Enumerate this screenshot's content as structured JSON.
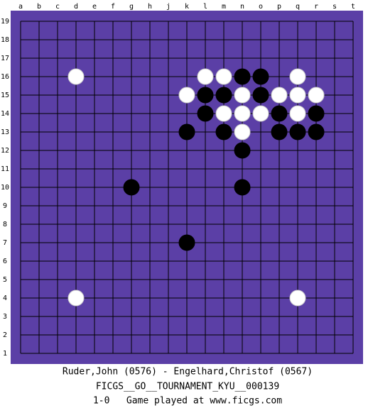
{
  "board": {
    "columns": [
      "a",
      "b",
      "c",
      "d",
      "e",
      "f",
      "g",
      "h",
      "j",
      "k",
      "l",
      "m",
      "n",
      "o",
      "p",
      "q",
      "r",
      "s",
      "t"
    ],
    "rows": [
      19,
      18,
      17,
      16,
      15,
      14,
      13,
      12,
      11,
      10,
      9,
      8,
      7,
      6,
      5,
      4,
      3,
      2,
      1
    ],
    "board_color": "#5b3fa6",
    "stones": [
      {
        "col": "d",
        "row": 16,
        "color": "white"
      },
      {
        "col": "l",
        "row": 16,
        "color": "white"
      },
      {
        "col": "m",
        "row": 16,
        "color": "white"
      },
      {
        "col": "n",
        "row": 16,
        "color": "black"
      },
      {
        "col": "o",
        "row": 16,
        "color": "black"
      },
      {
        "col": "q",
        "row": 16,
        "color": "white"
      },
      {
        "col": "k",
        "row": 15,
        "color": "white"
      },
      {
        "col": "l",
        "row": 15,
        "color": "black"
      },
      {
        "col": "m",
        "row": 15,
        "color": "black"
      },
      {
        "col": "n",
        "row": 15,
        "color": "white"
      },
      {
        "col": "o",
        "row": 15,
        "color": "black"
      },
      {
        "col": "p",
        "row": 15,
        "color": "white"
      },
      {
        "col": "q",
        "row": 15,
        "color": "white"
      },
      {
        "col": "r",
        "row": 15,
        "color": "white"
      },
      {
        "col": "l",
        "row": 14,
        "color": "black"
      },
      {
        "col": "m",
        "row": 14,
        "color": "white"
      },
      {
        "col": "n",
        "row": 14,
        "color": "white"
      },
      {
        "col": "o",
        "row": 14,
        "color": "white"
      },
      {
        "col": "p",
        "row": 14,
        "color": "black"
      },
      {
        "col": "q",
        "row": 14,
        "color": "white"
      },
      {
        "col": "r",
        "row": 14,
        "color": "black"
      },
      {
        "col": "k",
        "row": 13,
        "color": "black"
      },
      {
        "col": "m",
        "row": 13,
        "color": "black"
      },
      {
        "col": "n",
        "row": 13,
        "color": "white"
      },
      {
        "col": "p",
        "row": 13,
        "color": "black"
      },
      {
        "col": "q",
        "row": 13,
        "color": "black"
      },
      {
        "col": "r",
        "row": 13,
        "color": "black"
      },
      {
        "col": "n",
        "row": 12,
        "color": "black"
      },
      {
        "col": "g",
        "row": 10,
        "color": "black"
      },
      {
        "col": "n",
        "row": 10,
        "color": "black"
      },
      {
        "col": "k",
        "row": 7,
        "color": "black"
      },
      {
        "col": "d",
        "row": 4,
        "color": "white"
      },
      {
        "col": "q",
        "row": 4,
        "color": "white"
      }
    ]
  },
  "footer": {
    "players": "Ruder,John (0576) - Engelhard,Christof (0567)",
    "event": "FICGS__GO__TOURNAMENT_KYU__000139",
    "result": "1-0   Game played at www.ficgs.com"
  }
}
